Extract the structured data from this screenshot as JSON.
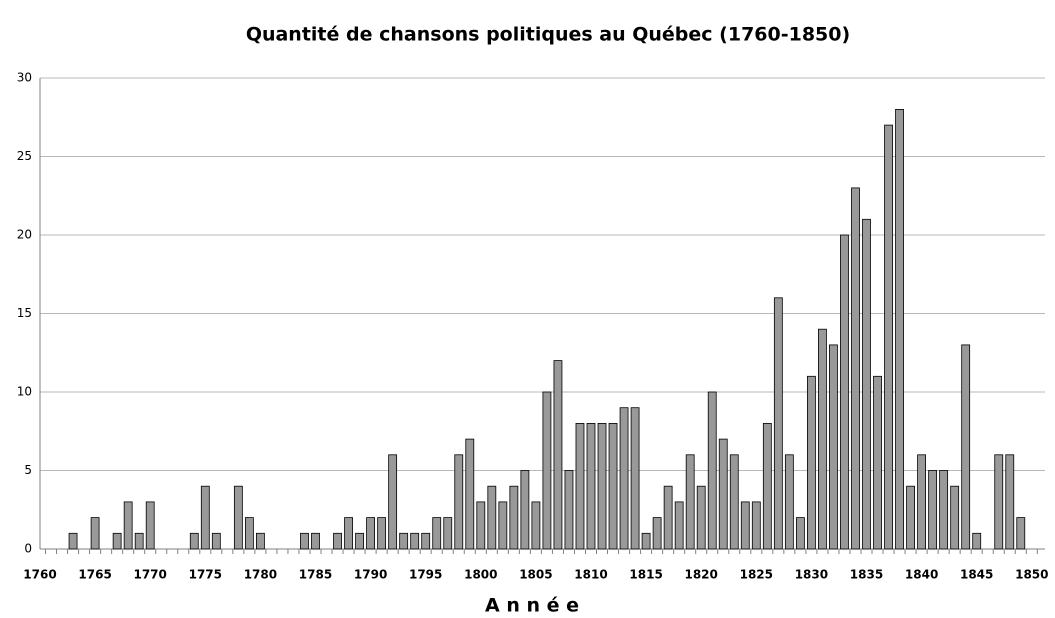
{
  "chart_data": {
    "type": "bar",
    "title": "Quantité de chansons politiques au Québec (1760-1850)",
    "x_label": "A n n é e",
    "categories": [
      "1760",
      null,
      null,
      null,
      null,
      "1765",
      null,
      null,
      null,
      null,
      "1770",
      null,
      null,
      null,
      null,
      "1775",
      null,
      null,
      null,
      null,
      "1780",
      null,
      null,
      null,
      null,
      "1785",
      null,
      null,
      null,
      null,
      "1790",
      null,
      null,
      null,
      null,
      "1795",
      null,
      null,
      null,
      null,
      "1800",
      null,
      null,
      null,
      null,
      "1805",
      null,
      null,
      null,
      null,
      "1810",
      null,
      null,
      null,
      null,
      "1815",
      null,
      null,
      null,
      null,
      "1820",
      null,
      null,
      null,
      null,
      "1825",
      null,
      null,
      null,
      null,
      "1830",
      null,
      null,
      null,
      null,
      "1835",
      null,
      null,
      null,
      null,
      "1840",
      null,
      null,
      null,
      null,
      "1845",
      null,
      null,
      null,
      null,
      "1850"
    ],
    "values": [
      0,
      0,
      0,
      1,
      0,
      2,
      0,
      1,
      3,
      1,
      3,
      0,
      0,
      0,
      1,
      4,
      1,
      0,
      4,
      2,
      1,
      0,
      0,
      0,
      1,
      1,
      0,
      1,
      2,
      1,
      2,
      2,
      6,
      1,
      1,
      1,
      2,
      2,
      6,
      7,
      3,
      4,
      3,
      4,
      5,
      3,
      10,
      12,
      5,
      8,
      8,
      8,
      8,
      9,
      9,
      1,
      2,
      4,
      3,
      6,
      4,
      10,
      7,
      6,
      3,
      3,
      8,
      16,
      6,
      2,
      11,
      14,
      13,
      20,
      23,
      21,
      11,
      27,
      28,
      4,
      6,
      5,
      5,
      4,
      13,
      1,
      0,
      6,
      6,
      2,
      0
    ],
    "color": "#999999",
    "ylim": [
      0,
      30
    ],
    "yticks": [
      0,
      5,
      10,
      15,
      20,
      25,
      30
    ],
    "grid": true
  }
}
